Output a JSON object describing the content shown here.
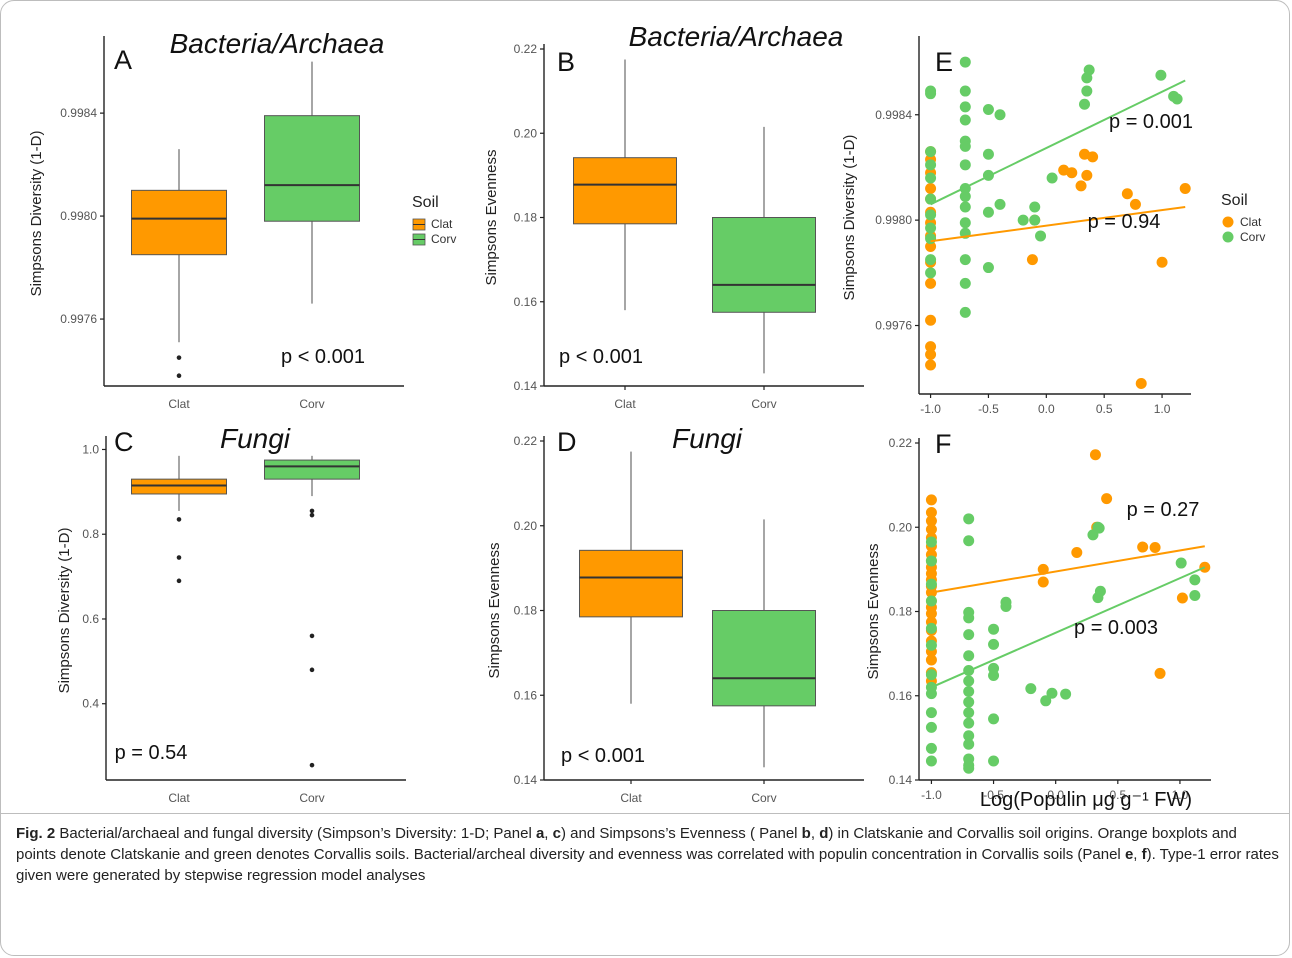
{
  "caption": {
    "fig_label": "Fig. 2",
    "segments": [
      {
        "t": " Bacterial/archaeal and fungal diversity (Simpson’s Diversity: 1-D; Panel ",
        "b": false
      },
      {
        "t": "a",
        "b": true
      },
      {
        "t": ", ",
        "b": false
      },
      {
        "t": "c",
        "b": true
      },
      {
        "t": ") and Simpsons’s Evenness ( Panel ",
        "b": false
      },
      {
        "t": "b",
        "b": true
      },
      {
        "t": ", ",
        "b": false
      },
      {
        "t": "d",
        "b": true
      },
      {
        "t": ") in Clatskanie and Corvallis soil origins. Orange boxplots and points denote Clatskanie and green denotes Corvallis soils. Bacterial/archeal diversity and evenness was correlated with populin concentration in Corvallis soils (Panel ",
        "b": false
      },
      {
        "t": "e",
        "b": true
      },
      {
        "t": ", ",
        "b": false
      },
      {
        "t": "f",
        "b": true
      },
      {
        "t": "). Type-1 error rates given were generated by stepwise regression model analyses",
        "b": false
      }
    ]
  },
  "colors": {
    "Clat": "#FF9900",
    "Corv": "#66CC66",
    "median": "#333333",
    "axis": "#222222"
  },
  "chart_data": [
    {
      "panel": "A",
      "type": "box",
      "title": "Bacteria/Archaea",
      "ylabel": "Simpsons Diversity (1-D)",
      "xlabel": "",
      "categories": [
        "Clat",
        "Corv"
      ],
      "ylim": [
        0.99734,
        0.99868
      ],
      "yticks": [
        0.9976,
        0.998,
        0.9984
      ],
      "ytick_labels": [
        "0.9976",
        "0.9980",
        "0.9984"
      ],
      "boxes": [
        {
          "cat": "Clat",
          "min": 0.99751,
          "q1": 0.99785,
          "median": 0.99799,
          "q3": 0.9981,
          "max": 0.99826,
          "outliers": [
            0.99745,
            0.99738
          ]
        },
        {
          "cat": "Corv",
          "min": 0.99766,
          "q1": 0.99798,
          "median": 0.99812,
          "q3": 0.99839,
          "max": 0.9986,
          "outliers": []
        }
      ],
      "annotation": "p < 0.001",
      "legend": {
        "title": "Soil",
        "entries": [
          "Clat",
          "Corv"
        ],
        "placement": "right"
      }
    },
    {
      "panel": "B",
      "type": "box",
      "title": "Bacteria/Archaea",
      "ylabel": "Simpsons Evenness",
      "xlabel": "",
      "categories": [
        "Clat",
        "Corv"
      ],
      "ylim": [
        0.14,
        0.22
      ],
      "yticks": [
        0.14,
        0.16,
        0.18,
        0.2,
        0.22
      ],
      "ytick_labels": [
        "0.14",
        "0.16",
        "0.18",
        "0.20",
        "0.22"
      ],
      "boxes": [
        {
          "cat": "Clat",
          "min": 0.158,
          "q1": 0.1785,
          "median": 0.1878,
          "q3": 0.1942,
          "max": 0.2175,
          "outliers": []
        },
        {
          "cat": "Corv",
          "min": 0.143,
          "q1": 0.1575,
          "median": 0.164,
          "q3": 0.18,
          "max": 0.2015,
          "outliers": []
        }
      ],
      "annotation": "p < 0.001"
    },
    {
      "panel": "C",
      "type": "box",
      "title": "Fungi",
      "ylabel": "Simpsons Diversity (1-D)",
      "xlabel": "",
      "categories": [
        "Clat",
        "Corv"
      ],
      "ylim": [
        0.22,
        1.02
      ],
      "yticks": [
        0.4,
        0.6,
        0.8,
        1.0
      ],
      "ytick_labels": [
        "0.4",
        "0.6",
        "0.8",
        "1.0"
      ],
      "boxes": [
        {
          "cat": "Clat",
          "min": 0.855,
          "q1": 0.895,
          "median": 0.915,
          "q3": 0.93,
          "max": 0.985,
          "outliers": [
            0.835,
            0.745,
            0.69
          ]
        },
        {
          "cat": "Corv",
          "min": 0.89,
          "q1": 0.93,
          "median": 0.96,
          "q3": 0.975,
          "max": 0.985,
          "outliers": [
            0.855,
            0.845,
            0.56,
            0.48,
            0.255
          ]
        }
      ],
      "annotation": "p = 0.54"
    },
    {
      "panel": "D",
      "type": "box",
      "title": "Fungi",
      "ylabel": "Simpsons Evenness",
      "xlabel": "",
      "categories": [
        "Clat",
        "Corv"
      ],
      "ylim": [
        0.14,
        0.22
      ],
      "yticks": [
        0.14,
        0.16,
        0.18,
        0.2,
        0.22
      ],
      "ytick_labels": [
        "0.14",
        "0.16",
        "0.18",
        "0.20",
        "0.22"
      ],
      "boxes": [
        {
          "cat": "Clat",
          "min": 0.158,
          "q1": 0.1785,
          "median": 0.1878,
          "q3": 0.1942,
          "max": 0.2175,
          "outliers": []
        },
        {
          "cat": "Corv",
          "min": 0.143,
          "q1": 0.1575,
          "median": 0.164,
          "q3": 0.18,
          "max": 0.2015,
          "outliers": []
        }
      ],
      "annotation": "p < 0.001"
    },
    {
      "panel": "E",
      "type": "scatter",
      "title": "",
      "ylabel": "Simpsons Diversity (1-D)",
      "xlabel": "",
      "xlim": [
        -1.1,
        1.25
      ],
      "xticks": [
        -1.0,
        -0.5,
        0.0,
        0.5,
        1.0
      ],
      "xtick_labels": [
        "-1.0",
        "-0.5",
        "0.0",
        "0.5",
        "1.0"
      ],
      "ylim": [
        0.99734,
        0.99868
      ],
      "yticks": [
        0.9976,
        0.998,
        0.9984
      ],
      "ytick_labels": [
        "0.9976",
        "0.9980",
        "0.9984"
      ],
      "series": [
        {
          "name": "Clat",
          "points": [
            [
              -1,
              0.99826
            ],
            [
              -1,
              0.99823
            ],
            [
              -1,
              0.99818
            ],
            [
              -1,
              0.99812
            ],
            [
              -1,
              0.99808
            ],
            [
              -1,
              0.99803
            ],
            [
              -1,
              0.99799
            ],
            [
              -1,
              0.99794
            ],
            [
              -1,
              0.9979
            ],
            [
              -1,
              0.99784
            ],
            [
              -1,
              0.99776
            ],
            [
              -1,
              0.99762
            ],
            [
              -1,
              0.99752
            ],
            [
              -1,
              0.99749
            ],
            [
              -1,
              0.99745
            ],
            [
              0.15,
              0.99819
            ],
            [
              0.22,
              0.99818
            ],
            [
              0.33,
              0.99825
            ],
            [
              0.4,
              0.99824
            ],
            [
              0.35,
              0.99817
            ],
            [
              0.3,
              0.99813
            ],
            [
              -0.12,
              0.99785
            ],
            [
              -0.1,
              0.998
            ],
            [
              0.7,
              0.9981
            ],
            [
              0.77,
              0.99806
            ],
            [
              1.0,
              0.99784
            ],
            [
              1.2,
              0.99812
            ],
            [
              0.82,
              0.99738
            ]
          ]
        },
        {
          "name": "Corv",
          "points": [
            [
              -1,
              0.99849
            ],
            [
              -1,
              0.99848
            ],
            [
              -1,
              0.99826
            ],
            [
              -1,
              0.99821
            ],
            [
              -1,
              0.99816
            ],
            [
              -1,
              0.99808
            ],
            [
              -1,
              0.99802
            ],
            [
              -1,
              0.99797
            ],
            [
              -1,
              0.99793
            ],
            [
              -1,
              0.99785
            ],
            [
              -1,
              0.9978
            ],
            [
              -0.7,
              0.9986
            ],
            [
              -0.7,
              0.99849
            ],
            [
              -0.7,
              0.99843
            ],
            [
              -0.7,
              0.99838
            ],
            [
              -0.7,
              0.9983
            ],
            [
              -0.7,
              0.99828
            ],
            [
              -0.7,
              0.99821
            ],
            [
              -0.7,
              0.99812
            ],
            [
              -0.7,
              0.99809
            ],
            [
              -0.7,
              0.99805
            ],
            [
              -0.7,
              0.99799
            ],
            [
              -0.7,
              0.99795
            ],
            [
              -0.7,
              0.99785
            ],
            [
              -0.7,
              0.99776
            ],
            [
              -0.7,
              0.99765
            ],
            [
              -0.5,
              0.99842
            ],
            [
              -0.5,
              0.99825
            ],
            [
              -0.5,
              0.99817
            ],
            [
              -0.5,
              0.99803
            ],
            [
              -0.5,
              0.99782
            ],
            [
              -0.4,
              0.9984
            ],
            [
              -0.4,
              0.99806
            ],
            [
              -0.2,
              0.998
            ],
            [
              -0.1,
              0.99805
            ],
            [
              -0.1,
              0.998
            ],
            [
              -0.05,
              0.99794
            ],
            [
              0.05,
              0.99816
            ],
            [
              0.35,
              0.99854
            ],
            [
              0.37,
              0.99857
            ],
            [
              0.35,
              0.99849
            ],
            [
              0.33,
              0.99844
            ],
            [
              0.99,
              0.99855
            ],
            [
              1.1,
              0.99847
            ],
            [
              1.13,
              0.99846
            ]
          ]
        }
      ],
      "fits": [
        {
          "name": "Clat",
          "x": [
            -1.0,
            1.2
          ],
          "y": [
            0.99792,
            0.99805
          ]
        },
        {
          "name": "Corv",
          "x": [
            -1.0,
            1.2
          ],
          "y": [
            0.99806,
            0.99853
          ]
        }
      ],
      "annotations": [
        "p = 0.001",
        "p = 0.94"
      ],
      "legend": {
        "title": "Soil",
        "entries": [
          "Clat",
          "Corv"
        ],
        "placement": "right"
      }
    },
    {
      "panel": "F",
      "type": "scatter",
      "title": "",
      "ylabel": "Simpsons Evenness",
      "xlabel": "Log(Populin μg g⁻¹ FW)",
      "xlim": [
        -1.1,
        1.25
      ],
      "xticks": [
        -1.0,
        -0.5,
        0.0,
        0.5,
        1.0
      ],
      "xtick_labels": [
        "-1.0",
        "-0.5",
        "0.0",
        "0.5",
        "1.0"
      ],
      "ylim": [
        0.14,
        0.22
      ],
      "yticks": [
        0.14,
        0.16,
        0.18,
        0.2,
        0.22
      ],
      "ytick_labels": [
        "0.14",
        "0.16",
        "0.18",
        "0.20",
        "0.22"
      ],
      "series": [
        {
          "name": "Clat",
          "points": [
            [
              -1,
              0.2065
            ],
            [
              -1,
              0.2035
            ],
            [
              -1,
              0.2015
            ],
            [
              -1,
              0.1995
            ],
            [
              -1,
              0.1975
            ],
            [
              -1,
              0.1955
            ],
            [
              -1,
              0.1935
            ],
            [
              -1,
              0.192
            ],
            [
              -1,
              0.1905
            ],
            [
              -1,
              0.189
            ],
            [
              -1,
              0.1875
            ],
            [
              -1,
              0.186
            ],
            [
              -1,
              0.1845
            ],
            [
              -1,
              0.1825
            ],
            [
              -1,
              0.181
            ],
            [
              -1,
              0.1795
            ],
            [
              -1,
              0.1775
            ],
            [
              -1,
              0.1755
            ],
            [
              -1,
              0.173
            ],
            [
              -1,
              0.1705
            ],
            [
              -1,
              0.1685
            ],
            [
              -1,
              0.1655
            ],
            [
              -1,
              0.1635
            ],
            [
              -0.1,
              0.19
            ],
            [
              -0.1,
              0.187
            ],
            [
              0.17,
              0.194
            ],
            [
              0.32,
              0.2172
            ],
            [
              0.33,
              0.2
            ],
            [
              0.41,
              0.2068
            ],
            [
              0.7,
              0.1953
            ],
            [
              0.8,
              0.1952
            ],
            [
              1.02,
              0.1832
            ],
            [
              1.2,
              0.1905
            ],
            [
              0.84,
              0.1653
            ]
          ]
        },
        {
          "name": "Corv",
          "points": [
            [
              -1,
              0.1965
            ],
            [
              -1,
              0.192
            ],
            [
              -1,
              0.1865
            ],
            [
              -1,
              0.1825
            ],
            [
              -1,
              0.176
            ],
            [
              -1,
              0.172
            ],
            [
              -1,
              0.165
            ],
            [
              -1,
              0.162
            ],
            [
              -1,
              0.1605
            ],
            [
              -1,
              0.156
            ],
            [
              -1,
              0.1525
            ],
            [
              -1,
              0.1475
            ],
            [
              -1,
              0.1445
            ],
            [
              -0.7,
              0.202
            ],
            [
              -0.7,
              0.1968
            ],
            [
              -0.7,
              0.1798
            ],
            [
              -0.7,
              0.1785
            ],
            [
              -0.7,
              0.1745
            ],
            [
              -0.7,
              0.1695
            ],
            [
              -0.7,
              0.166
            ],
            [
              -0.7,
              0.1635
            ],
            [
              -0.7,
              0.161
            ],
            [
              -0.7,
              0.1585
            ],
            [
              -0.7,
              0.156
            ],
            [
              -0.7,
              0.1535
            ],
            [
              -0.7,
              0.1505
            ],
            [
              -0.7,
              0.1485
            ],
            [
              -0.7,
              0.145
            ],
            [
              -0.7,
              0.1435
            ],
            [
              -0.7,
              0.1428
            ],
            [
              -0.5,
              0.1758
            ],
            [
              -0.5,
              0.1722
            ],
            [
              -0.5,
              0.1665
            ],
            [
              -0.5,
              0.1648
            ],
            [
              -0.5,
              0.1545
            ],
            [
              -0.5,
              0.1445
            ],
            [
              -0.4,
              0.1822
            ],
            [
              -0.4,
              0.1812
            ],
            [
              -0.2,
              0.1617
            ],
            [
              -0.08,
              0.1588
            ],
            [
              -0.03,
              0.1606
            ],
            [
              0.08,
              0.1604
            ],
            [
              0.3,
              0.1982
            ],
            [
              0.35,
              0.1998
            ],
            [
              0.34,
              0.2
            ],
            [
              0.36,
              0.1848
            ],
            [
              0.34,
              0.1833
            ],
            [
              1.01,
              0.1915
            ],
            [
              1.12,
              0.1875
            ],
            [
              1.12,
              0.1838
            ]
          ]
        }
      ],
      "fits": [
        {
          "name": "Clat",
          "x": [
            -1.0,
            1.2
          ],
          "y": [
            0.1845,
            0.1955
          ]
        },
        {
          "name": "Corv",
          "x": [
            -1.0,
            1.2
          ],
          "y": [
            0.162,
            0.1905
          ]
        }
      ],
      "annotations": [
        "p = 0.27",
        "p = 0.003"
      ]
    }
  ]
}
